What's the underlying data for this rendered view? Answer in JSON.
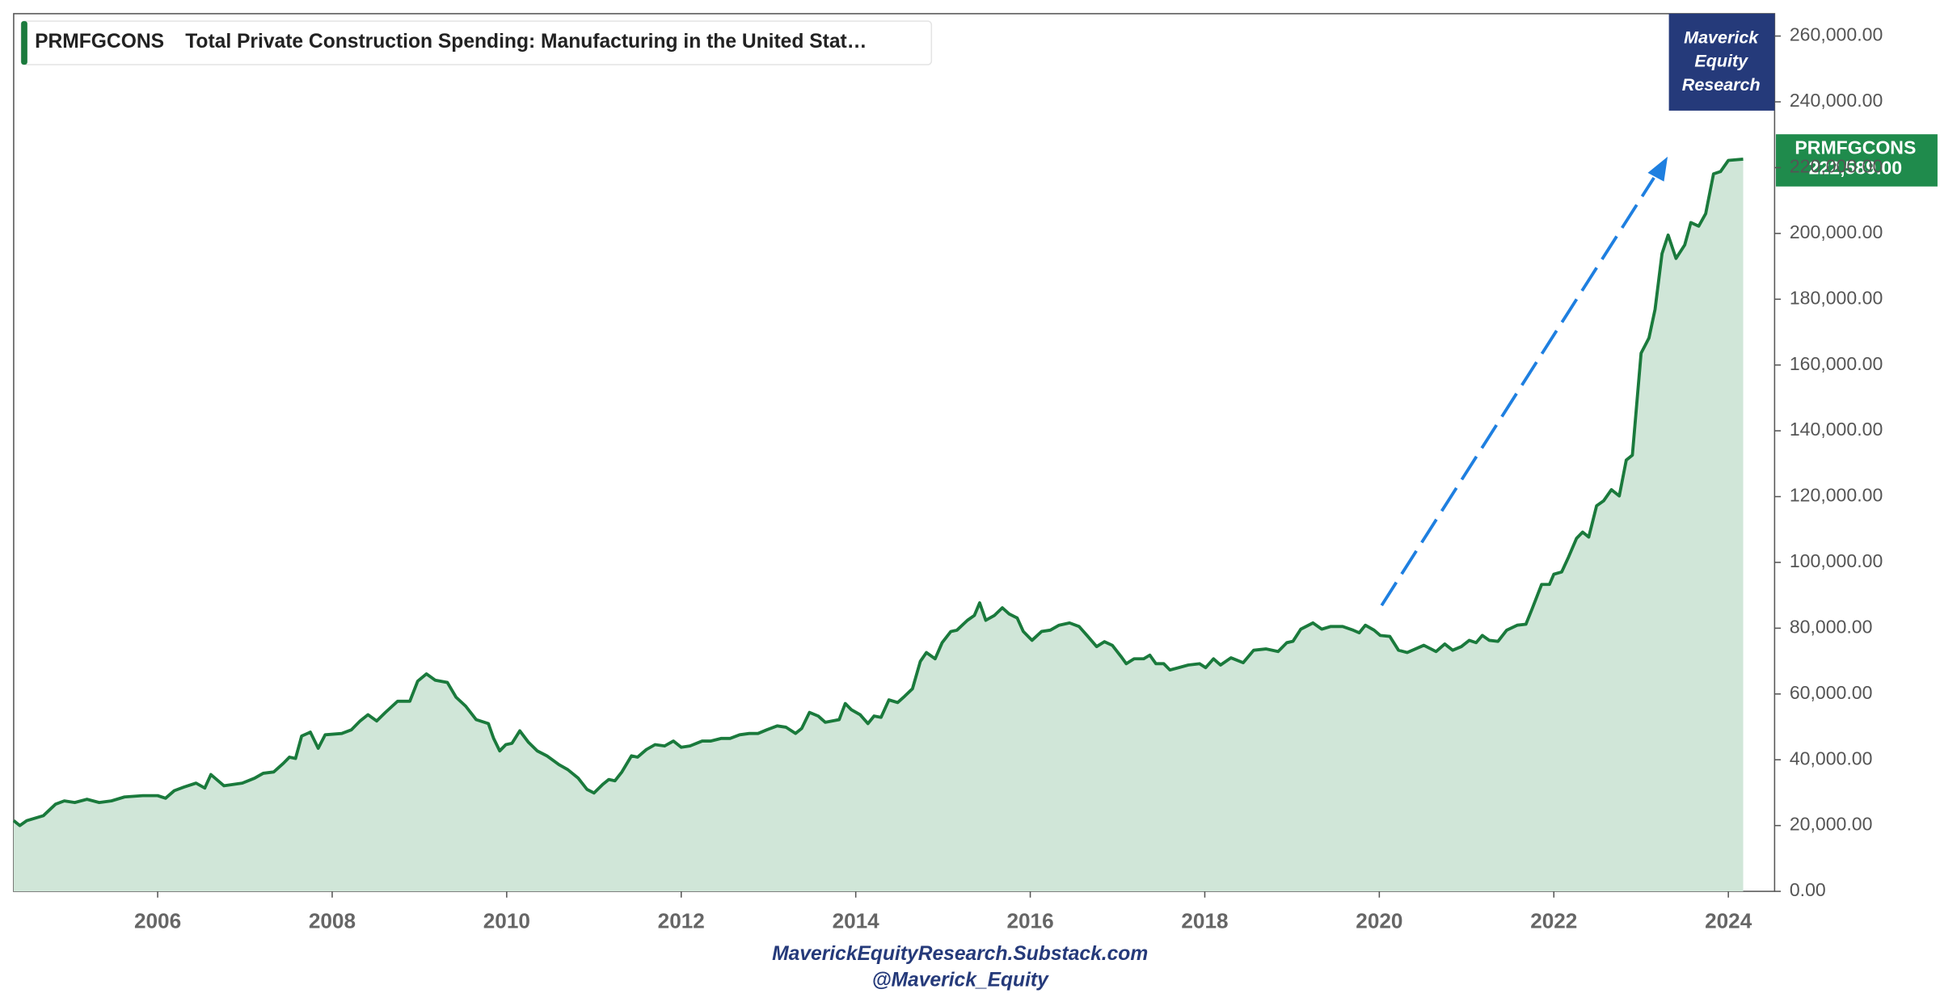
{
  "chart_data": {
    "type": "area",
    "legend_title": "Total Private Construction Spending: Manufacturing in the United Stat…",
    "watermark": [
      "Maverick",
      "Equity",
      "Research"
    ],
    "footer": [
      "MaverickEquityResearch.Substack.com",
      "@Maverick_Equity"
    ],
    "last_value_label": "222,589.00",
    "xlim": [
      2004.35,
      2024.53
    ],
    "xticks": [
      2006,
      2008,
      2010,
      2012,
      2014,
      2016,
      2018,
      2020,
      2022,
      2024
    ],
    "ylim": [
      0,
      266800
    ],
    "yticks": [
      {
        "value": 0,
        "label": "0.00"
      },
      {
        "value": 20000,
        "label": "20,000.00"
      },
      {
        "value": 40000,
        "label": "40,000.00"
      },
      {
        "value": 60000,
        "label": "60,000.00"
      },
      {
        "value": 80000,
        "label": "80,000.00"
      },
      {
        "value": 100000,
        "label": "100,000.00"
      },
      {
        "value": 120000,
        "label": "120,000.00"
      },
      {
        "value": 140000,
        "label": "140,000.00"
      },
      {
        "value": 160000,
        "label": "160,000.00"
      },
      {
        "value": 180000,
        "label": "180,000.00"
      },
      {
        "value": 200000,
        "label": "200,000.00"
      },
      {
        "value": 220000,
        "label": "220,000.00"
      },
      {
        "value": 240000,
        "label": "240,000.00"
      },
      {
        "value": 260000,
        "label": "260,000.00"
      }
    ],
    "grid": false,
    "x": [
      2004.35,
      2004.42,
      2004.5,
      2004.69,
      2004.83,
      2004.93,
      2005.05,
      2005.19,
      2005.33,
      2005.47,
      2005.62,
      2005.83,
      2006.0,
      2006.09,
      2006.19,
      2006.3,
      2006.44,
      2006.54,
      2006.61,
      2006.76,
      2006.97,
      2007.11,
      2007.21,
      2007.33,
      2007.44,
      2007.51,
      2007.58,
      2007.65,
      2007.75,
      2007.84,
      2007.92,
      2008.11,
      2008.22,
      2008.32,
      2008.41,
      2008.51,
      2008.61,
      2008.75,
      2008.89,
      2008.98,
      2009.08,
      2009.18,
      2009.32,
      2009.42,
      2009.53,
      2009.65,
      2009.79,
      2009.85,
      2009.92,
      2009.99,
      2010.06,
      2010.15,
      2010.25,
      2010.35,
      2010.46,
      2010.6,
      2010.7,
      2010.82,
      2010.92,
      2011.0,
      2011.1,
      2011.17,
      2011.24,
      2011.32,
      2011.43,
      2011.5,
      2011.6,
      2011.7,
      2011.81,
      2011.91,
      2012.0,
      2012.1,
      2012.24,
      2012.34,
      2012.46,
      2012.56,
      2012.67,
      2012.78,
      2012.88,
      2012.98,
      2013.1,
      2013.2,
      2013.31,
      2013.38,
      2013.47,
      2013.57,
      2013.65,
      2013.81,
      2013.88,
      2013.95,
      2014.05,
      2014.14,
      2014.21,
      2014.29,
      2014.38,
      2014.48,
      2014.56,
      2014.65,
      2014.74,
      2014.81,
      2014.91,
      2014.99,
      2015.09,
      2015.16,
      2015.28,
      2015.36,
      2015.42,
      2015.49,
      2015.59,
      2015.68,
      2015.76,
      2015.85,
      2015.92,
      2016.02,
      2016.13,
      2016.23,
      2016.33,
      2016.45,
      2016.56,
      2016.66,
      2016.76,
      2016.85,
      2016.94,
      2017.04,
      2017.1,
      2017.19,
      2017.3,
      2017.37,
      2017.44,
      2017.53,
      2017.6,
      2017.7,
      2017.81,
      2017.94,
      2018.01,
      2018.1,
      2018.18,
      2018.3,
      2018.44,
      2018.56,
      2018.7,
      2018.84,
      2018.94,
      2019.01,
      2019.1,
      2019.24,
      2019.34,
      2019.44,
      2019.58,
      2019.7,
      2019.77,
      2019.84,
      2019.94,
      2020.01,
      2020.12,
      2020.22,
      2020.32,
      2020.51,
      2020.65,
      2020.75,
      2020.84,
      2020.94,
      2021.03,
      2021.11,
      2021.18,
      2021.26,
      2021.36,
      2021.46,
      2021.58,
      2021.68,
      2021.75,
      2021.86,
      2021.95,
      2022.0,
      2022.09,
      2022.17,
      2022.26,
      2022.33,
      2022.4,
      2022.49,
      2022.57,
      2022.66,
      2022.75,
      2022.83,
      2022.9,
      2023.0,
      2023.09,
      2023.16,
      2023.24,
      2023.31,
      2023.4,
      2023.5,
      2023.57,
      2023.66,
      2023.74,
      2023.83,
      2023.91,
      2024.0,
      2024.17
    ],
    "series": [
      {
        "name": "PRMFGCONS",
        "color": "#1a7a3c",
        "fill": "#d0e6d8",
        "values": [
          21500,
          20000,
          21500,
          23000,
          26500,
          27500,
          27000,
          28000,
          27000,
          27500,
          28700,
          29100,
          29100,
          28300,
          30600,
          31700,
          32900,
          31400,
          35500,
          32100,
          32900,
          34400,
          35900,
          36300,
          38900,
          40800,
          40400,
          47200,
          48400,
          43500,
          47600,
          48000,
          49100,
          51800,
          53700,
          51800,
          54400,
          57800,
          57800,
          63900,
          66100,
          64200,
          63500,
          59000,
          56300,
          52200,
          51000,
          46500,
          42700,
          44600,
          45000,
          48800,
          45300,
          42700,
          41200,
          38500,
          37000,
          34400,
          31000,
          29900,
          32500,
          34000,
          33600,
          36300,
          41200,
          40800,
          43100,
          44600,
          44200,
          45700,
          43800,
          44200,
          45700,
          45700,
          46500,
          46500,
          47600,
          48000,
          48000,
          49100,
          50300,
          49900,
          48000,
          49500,
          54400,
          53300,
          51400,
          52200,
          57100,
          55200,
          53700,
          51000,
          53300,
          52900,
          58200,
          57400,
          59300,
          61600,
          69900,
          72600,
          70700,
          75600,
          79000,
          79400,
          82400,
          83900,
          87700,
          82400,
          83900,
          86200,
          84300,
          83100,
          79000,
          76300,
          79000,
          79400,
          80900,
          81600,
          80500,
          77500,
          74400,
          75900,
          74800,
          71400,
          69200,
          70700,
          70700,
          71800,
          69200,
          69200,
          67300,
          68000,
          68800,
          69200,
          68000,
          70700,
          68800,
          71000,
          69500,
          73300,
          73700,
          72900,
          75600,
          76000,
          79700,
          81600,
          79700,
          80500,
          80500,
          79400,
          78600,
          80900,
          79400,
          77800,
          77500,
          73300,
          72600,
          74800,
          72900,
          75200,
          73300,
          74400,
          76300,
          75600,
          77800,
          76300,
          76000,
          79400,
          80900,
          81200,
          85800,
          93300,
          93300,
          96400,
          97100,
          101700,
          107300,
          109200,
          107700,
          117200,
          118700,
          122100,
          120200,
          131100,
          132600,
          163600,
          168200,
          176900,
          193900,
          199500,
          192400,
          196500,
          203300,
          202200,
          206000,
          218100,
          218800,
          222200,
          222589
        ]
      }
    ]
  }
}
